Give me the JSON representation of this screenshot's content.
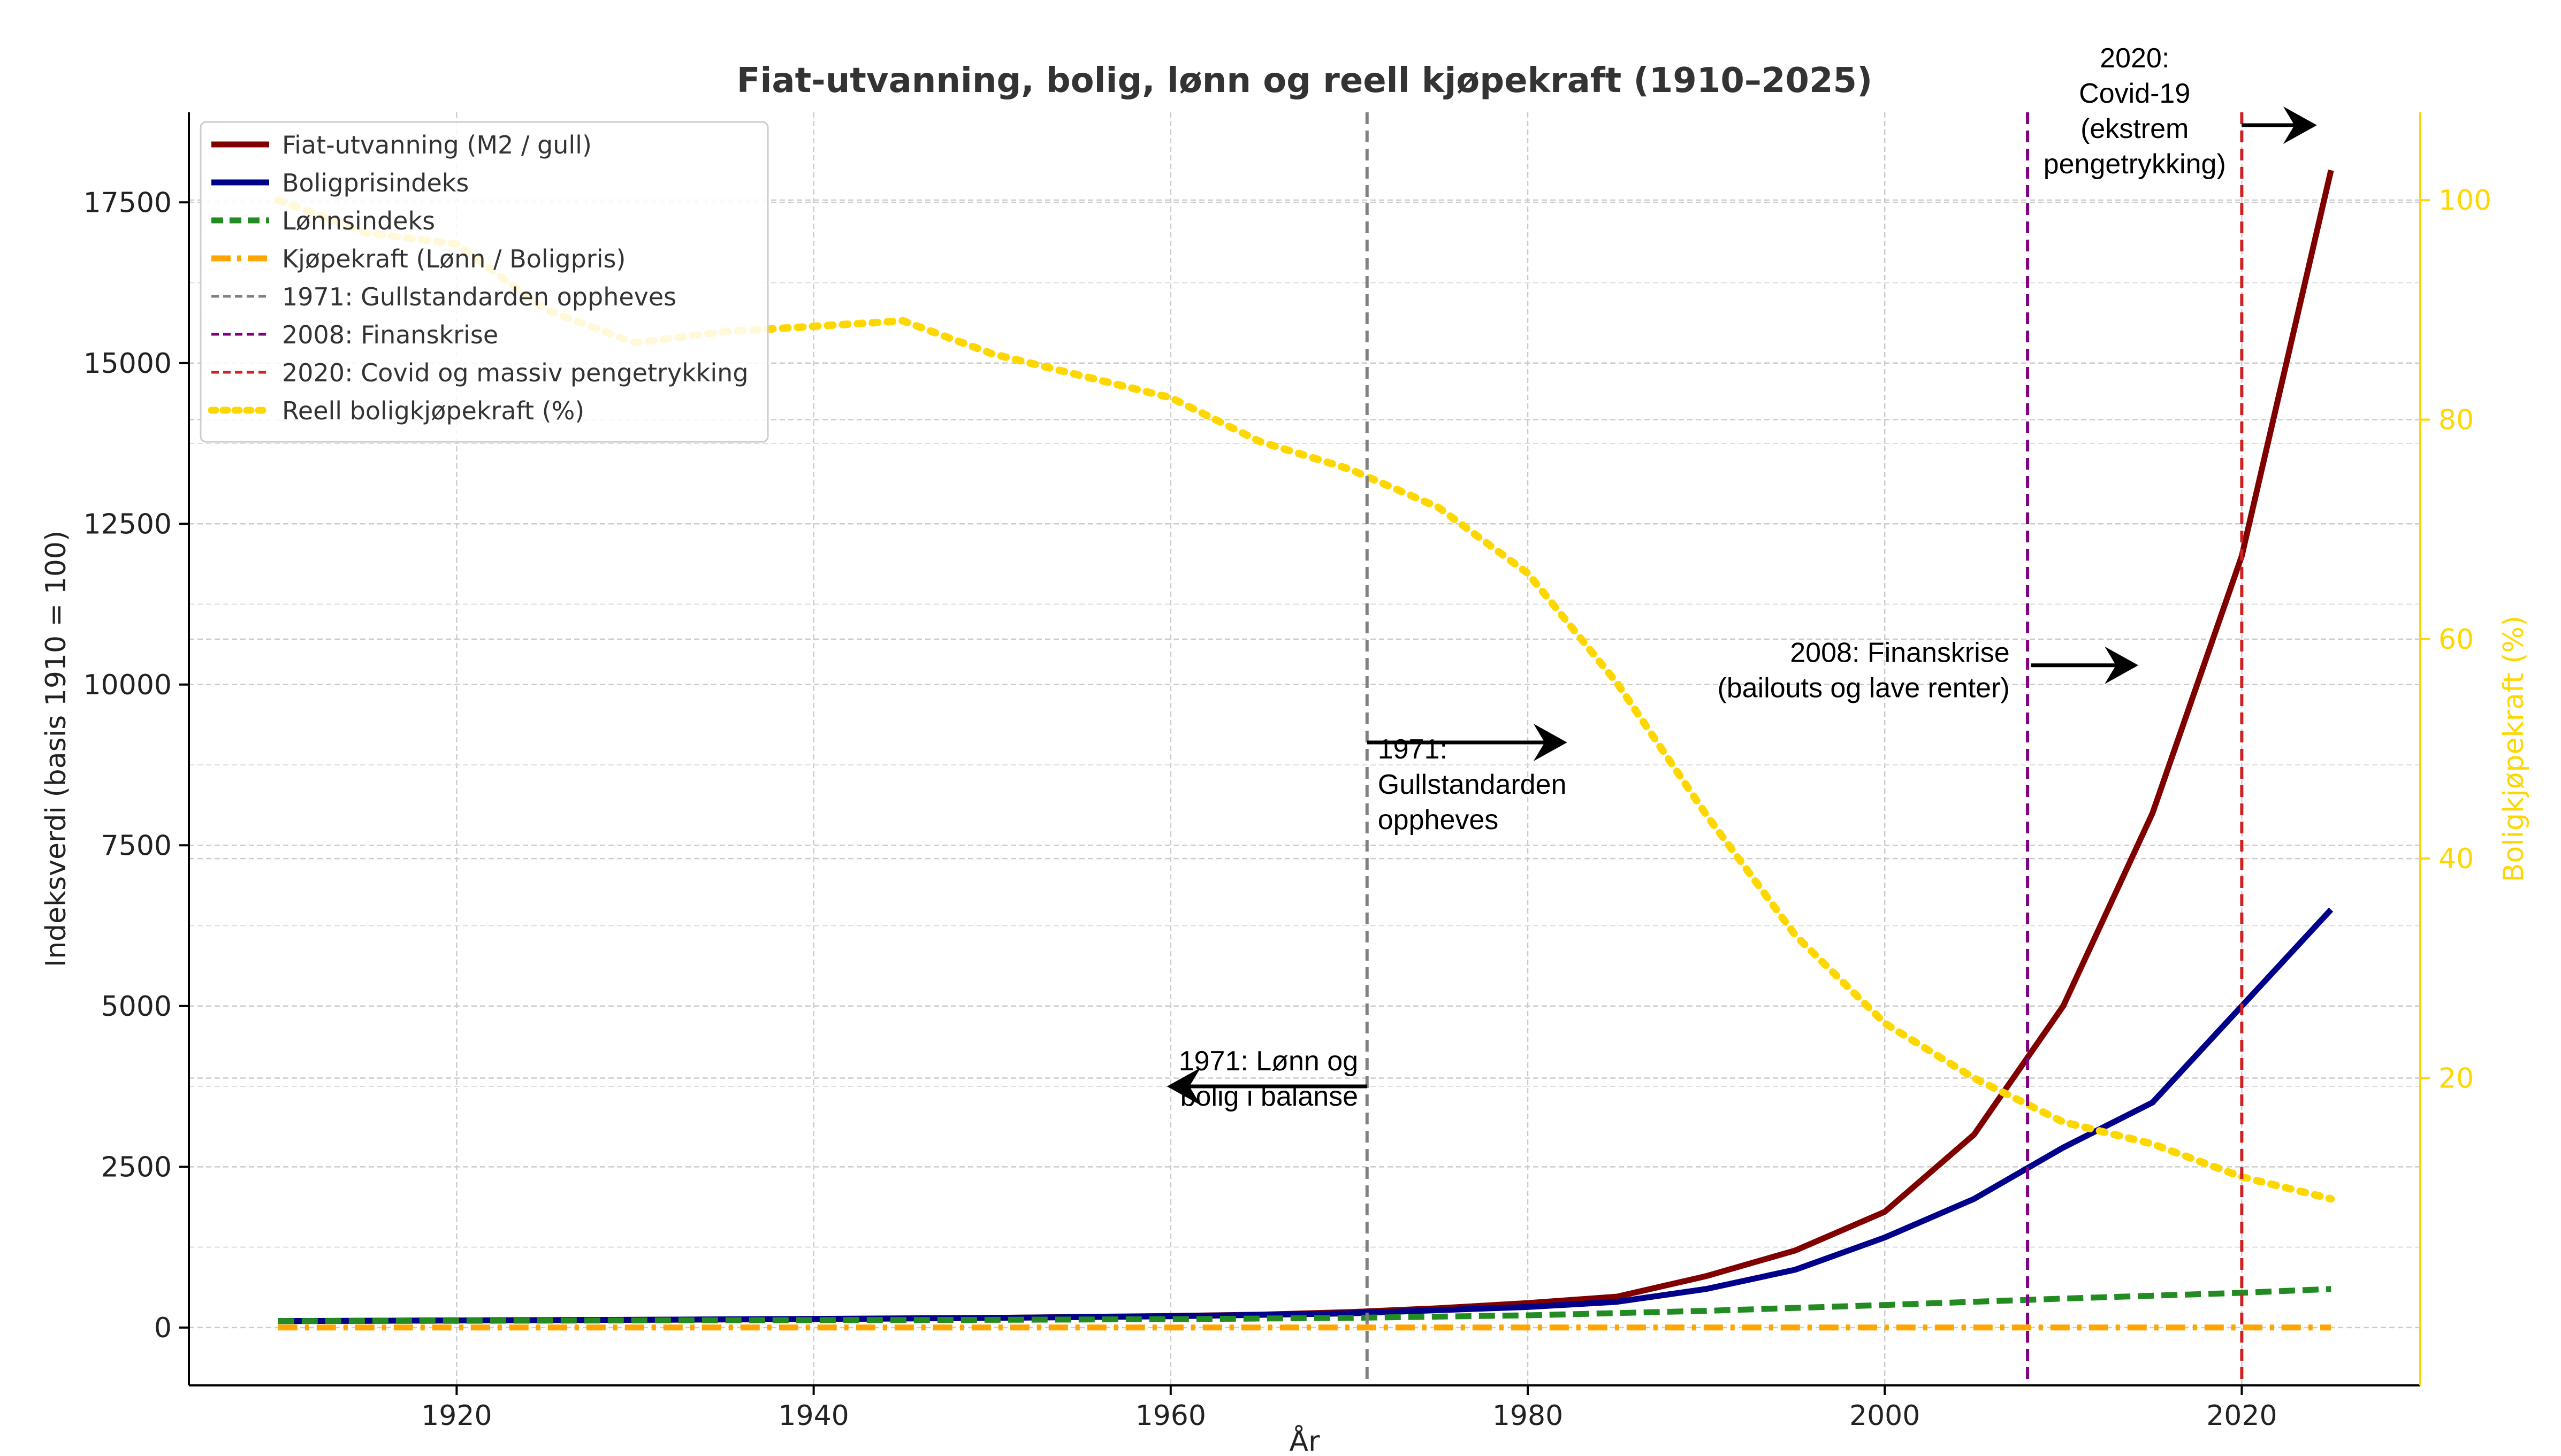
{
  "chart_data": {
    "type": "line",
    "title": "Fiat-utvanning, bolig, lønn og reell kjøpekraft (1910–2025)",
    "xlabel": "År",
    "ylabel": "Indeksverdi (basis 1910 = 100)",
    "ylabel_right": "Boligkjøpekraft (%)",
    "xlim": [
      1905,
      2030
    ],
    "ylim": [
      -900,
      18900
    ],
    "ylim_right": [
      -8,
      108
    ],
    "x_ticks": [
      1920,
      1940,
      1960,
      1980,
      2000,
      2020
    ],
    "y_ticks": [
      0,
      2500,
      5000,
      7500,
      10000,
      12500,
      15000,
      17500
    ],
    "y_ticks_right": [
      20,
      40,
      60,
      80,
      100
    ],
    "grid": true,
    "legend_position": "top-left",
    "series": [
      {
        "name": "Fiat-utvanning (M2 / gull)",
        "color": "#800000",
        "style": "solid",
        "axis": "left",
        "x": [
          1910,
          1915,
          1920,
          1925,
          1930,
          1935,
          1940,
          1945,
          1950,
          1955,
          1960,
          1965,
          1970,
          1975,
          1980,
          1985,
          1990,
          1995,
          2000,
          2005,
          2010,
          2015,
          2020,
          2025
        ],
        "y": [
          100,
          105,
          110,
          115,
          120,
          125,
          130,
          140,
          150,
          165,
          180,
          200,
          240,
          300,
          380,
          480,
          800,
          1200,
          1800,
          3000,
          5000,
          8000,
          12000,
          18000
        ]
      },
      {
        "name": "Boligprisindeks",
        "color": "#00008b",
        "style": "solid",
        "axis": "left",
        "x": [
          1910,
          1920,
          1930,
          1940,
          1950,
          1960,
          1970,
          1975,
          1980,
          1985,
          1990,
          1995,
          2000,
          2005,
          2010,
          2015,
          2020,
          2025
        ],
        "y": [
          100,
          110,
          120,
          135,
          150,
          175,
          220,
          270,
          320,
          400,
          600,
          900,
          1400,
          2000,
          2800,
          3500,
          5000,
          6500
        ]
      },
      {
        "name": "Lønnsindeks",
        "color": "#228b22",
        "style": "dashed",
        "axis": "left",
        "x": [
          1910,
          1920,
          1930,
          1940,
          1950,
          1960,
          1970,
          1980,
          1990,
          2000,
          2010,
          2020,
          2025
        ],
        "y": [
          100,
          105,
          110,
          115,
          120,
          130,
          150,
          190,
          260,
          350,
          450,
          540,
          600
        ]
      },
      {
        "name": "Kjøpekraft (Lønn / Boligpris)",
        "color": "#ffa500",
        "style": "dashdot",
        "axis": "left",
        "x": [
          1910,
          2025
        ],
        "y": [
          1,
          0.1
        ]
      },
      {
        "name": "Reell boligkjøpekraft (%)",
        "color": "#ffd700",
        "style": "dotted",
        "axis": "right",
        "x": [
          1910,
          1915,
          1920,
          1925,
          1930,
          1935,
          1940,
          1945,
          1950,
          1955,
          1960,
          1965,
          1970,
          1975,
          1980,
          1985,
          1990,
          1995,
          2000,
          2005,
          2010,
          2015,
          2020,
          2025
        ],
        "y": [
          100,
          97,
          96,
          90,
          87,
          88,
          88.5,
          89,
          86,
          84,
          82,
          78,
          75.5,
          72,
          66,
          56,
          44,
          33,
          25,
          20,
          16,
          14,
          11,
          9
        ]
      }
    ],
    "vlines": [
      {
        "name": "1971: Gullstandarden oppheves",
        "x": 1971,
        "color": "#808080"
      },
      {
        "name": "2008: Finanskrise",
        "x": 2008,
        "color": "#800080"
      },
      {
        "name": "2020: Covid og massiv pengetrykking",
        "x": 2020,
        "color": "#cc2222"
      }
    ],
    "annotations": [
      {
        "lines": [
          "1971:",
          "Gullstandarden",
          "oppheves"
        ],
        "x": 1971.6,
        "y": 8850,
        "align": "start",
        "arrow": {
          "from": [
            1971,
            9100
          ],
          "to": [
            1982,
            9100
          ]
        }
      },
      {
        "lines": [
          "1971: Lønn og",
          "bolig i balanse"
        ],
        "x": 1970.5,
        "y": 4000,
        "align": "end",
        "arrow": {
          "from": [
            1971,
            3750
          ],
          "to": [
            1960,
            3750
          ]
        }
      },
      {
        "lines": [
          "2008: Finanskrise",
          "(bailouts og lave renter)"
        ],
        "x": 2007,
        "y": 10350,
        "align": "end",
        "arrow": {
          "from": [
            2008.2,
            10300
          ],
          "to": [
            2014,
            10300
          ]
        }
      },
      {
        "lines": [
          "2020:",
          "Covid-19",
          "(ekstrem",
          "pengetrykking)"
        ],
        "x": 2014,
        "y": 19600,
        "align": "middle",
        "arrow": {
          "from": [
            2020,
            18700
          ],
          "to": [
            2024,
            18700
          ]
        }
      }
    ]
  }
}
